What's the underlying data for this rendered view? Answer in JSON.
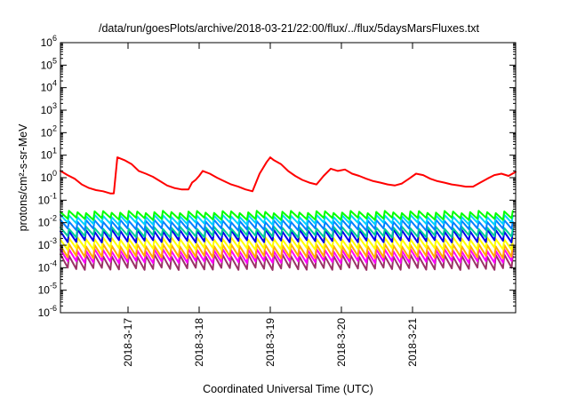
{
  "chart_data": {
    "type": "line",
    "title": "/data/run/goesPlots/archive/2018-03-21/22:00/flux/../flux/5daysMarsFluxes.txt",
    "xlabel": "Coordinated Universal Time (UTC)",
    "ylabel": "protons/cm²-s-sr-MeV",
    "yscale": "log",
    "ylim": [
      1e-06,
      1000000.0
    ],
    "xlim_days": [
      -0.95,
      5.45
    ],
    "x_tick_days": [
      0,
      1,
      2,
      3,
      4
    ],
    "x_tick_labels": [
      "2018-3-17",
      "2018-3-18",
      "2018-3-19",
      "2018-3-20",
      "2018-3-21"
    ],
    "y_tick_labels": [
      {
        "base": "10",
        "exp": "6"
      },
      {
        "base": "10",
        "exp": "5"
      },
      {
        "base": "10",
        "exp": "4"
      },
      {
        "base": "10",
        "exp": "3"
      },
      {
        "base": "10",
        "exp": "2"
      },
      {
        "base": "10",
        "exp": "1"
      },
      {
        "base": "10",
        "exp": "0"
      },
      {
        "base": "10",
        "exp": "-1"
      },
      {
        "base": "10",
        "exp": "-2"
      },
      {
        "base": "10",
        "exp": "-3"
      },
      {
        "base": "10",
        "exp": "-4"
      },
      {
        "base": "10",
        "exp": "-5"
      },
      {
        "base": "10",
        "exp": "-6"
      }
    ],
    "grid": false,
    "series": [
      {
        "color": "#ff0000",
        "x": [
          -0.95,
          -0.85,
          -0.75,
          -0.65,
          -0.55,
          -0.45,
          -0.35,
          -0.25,
          -0.2,
          -0.15,
          -0.05,
          0.05,
          0.15,
          0.25,
          0.35,
          0.45,
          0.55,
          0.65,
          0.75,
          0.85,
          0.9,
          0.95,
          1.0,
          1.05,
          1.15,
          1.25,
          1.35,
          1.45,
          1.55,
          1.65,
          1.75,
          1.85,
          1.95,
          2.0,
          2.05,
          2.15,
          2.25,
          2.35,
          2.45,
          2.55,
          2.65,
          2.75,
          2.85,
          2.95,
          3.05,
          3.15,
          3.25,
          3.35,
          3.45,
          3.55,
          3.65,
          3.75,
          3.85,
          3.95,
          4.05,
          4.15,
          4.25,
          4.35,
          4.45,
          4.55,
          4.65,
          4.75,
          4.85,
          4.95,
          5.05,
          5.15,
          5.25,
          5.35,
          5.45
        ],
        "y": [
          2.0,
          1.3,
          0.9,
          0.5,
          0.35,
          0.28,
          0.25,
          0.2,
          0.2,
          8,
          6,
          4,
          2,
          1.5,
          1.1,
          0.7,
          0.45,
          0.35,
          0.3,
          0.3,
          0.6,
          0.8,
          1.2,
          2,
          1.5,
          1,
          0.7,
          0.5,
          0.4,
          0.3,
          0.25,
          1.5,
          5,
          8,
          6,
          4,
          2,
          1.2,
          0.8,
          0.6,
          0.5,
          1.2,
          2.5,
          2,
          2.3,
          1.5,
          1.2,
          0.9,
          0.7,
          0.6,
          0.5,
          0.45,
          0.55,
          0.9,
          1.5,
          1.3,
          0.9,
          0.7,
          0.6,
          0.5,
          0.45,
          0.4,
          0.4,
          0.6,
          0.9,
          1.3,
          1.5,
          1.2,
          1.8
        ]
      },
      {
        "color": "#00ff00",
        "x": [],
        "y": []
      },
      {
        "color": "#00d0ff",
        "x": [],
        "y": []
      },
      {
        "color": "#0080ff",
        "x": [],
        "y": []
      },
      {
        "color": "#00cc99",
        "x": [],
        "y": []
      },
      {
        "color": "#0000ee",
        "x": [],
        "y": []
      },
      {
        "color": "#ffff00",
        "x": [],
        "y": []
      },
      {
        "color": "#ffaa00",
        "x": [],
        "y": []
      },
      {
        "color": "#ff00ff",
        "x": [],
        "y": []
      },
      {
        "color": "#993366",
        "x": [],
        "y": []
      }
    ],
    "sawtooth_profiles": [
      {
        "period_days": 0.12,
        "peak": 0.03,
        "trough": 0.015
      },
      {
        "period_days": 0.12,
        "peak": 0.02,
        "trough": 0.009
      },
      {
        "period_days": 0.12,
        "peak": 0.012,
        "trough": 0.005
      },
      {
        "period_days": 0.12,
        "peak": 0.006,
        "trough": 0.0025
      },
      {
        "period_days": 0.12,
        "peak": 0.0045,
        "trough": 0.0015
      },
      {
        "period_days": 0.12,
        "peak": 0.002,
        "trough": 0.0007
      },
      {
        "period_days": 0.12,
        "peak": 0.001,
        "trough": 0.0003
      },
      {
        "period_days": 0.12,
        "peak": 0.0006,
        "trough": 0.00018
      },
      {
        "period_days": 0.12,
        "peak": 0.00035,
        "trough": 9e-05
      },
      {
        "period_days": 0.12,
        "peak": 0.0002,
        "trough": 5e-05
      }
    ]
  }
}
